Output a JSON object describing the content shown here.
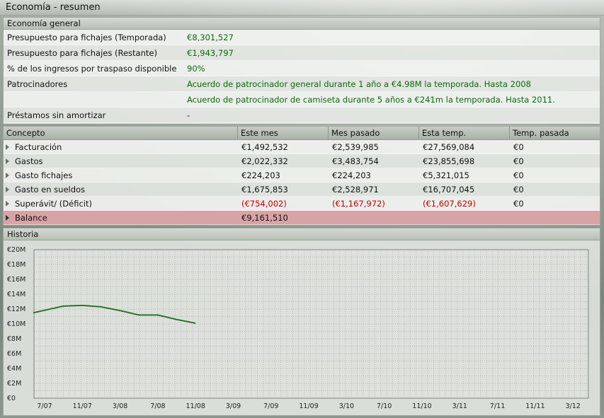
{
  "window": {
    "title": "Economía - resumen"
  },
  "general": {
    "header": "Economía general",
    "rows": [
      {
        "label": "Presupuesto para fichajes (Temporada)",
        "value": "€8,301,527"
      },
      {
        "label": "Presupuesto para fichajes (Restante)",
        "value": "€1,943,797"
      },
      {
        "label": "% de los ingresos por traspaso disponible",
        "value": "90%"
      },
      {
        "label": "Patrocinadores",
        "value": "Acuerdo de patrocinador general durante 1 año a €4.98M la temporada. Hasta 2008"
      },
      {
        "label": "",
        "value": "Acuerdo de patrocinador de camiseta durante 5 años a €241m la temporada. Hasta 2011."
      },
      {
        "label": "Préstamos sin amortizar",
        "value": "-"
      }
    ]
  },
  "table": {
    "columns": [
      "Concepto",
      "Este mes",
      "Mes pasado",
      "Esta temp.",
      "Temp. pasada"
    ],
    "rows": [
      {
        "concepto": "Facturación",
        "este_mes": "€1,492,532",
        "mes_pasado": "€2,539,985",
        "esta_temp": "€27,569,084",
        "temp_pasada": "€0"
      },
      {
        "concepto": "Gastos",
        "este_mes": "€2,022,332",
        "mes_pasado": "€3,483,754",
        "esta_temp": "€23,855,698",
        "temp_pasada": "€0"
      },
      {
        "concepto": "Gasto fichajes",
        "este_mes": "€224,203",
        "mes_pasado": "€224,203",
        "esta_temp": "€5,321,015",
        "temp_pasada": "€0"
      },
      {
        "concepto": "Gasto en sueldos",
        "este_mes": "€1,675,853",
        "mes_pasado": "€2,528,971",
        "esta_temp": "€16,707,045",
        "temp_pasada": "€0"
      },
      {
        "concepto": "Superávit/ (Déficit)",
        "este_mes": "(€754,002)",
        "mes_pasado": "(€1,167,972)",
        "esta_temp": "(€1,607,629)",
        "temp_pasada": "€0"
      },
      {
        "concepto": "Balance",
        "este_mes": "€9,161,510",
        "mes_pasado": "",
        "esta_temp": "",
        "temp_pasada": ""
      }
    ]
  },
  "history": {
    "header": "Historia"
  },
  "colors": {
    "positive": "#0a6a0a",
    "negative": "#c00000",
    "balance_row": "#d8a3a6",
    "line": "#1a6b1a"
  },
  "chart_data": {
    "type": "line",
    "ylim": [
      0,
      20
    ],
    "yticks": [
      "€0",
      "€2M",
      "€4M",
      "€6M",
      "€8M",
      "€10M",
      "€12M",
      "€14M",
      "€16M",
      "€18M",
      "€20M"
    ],
    "xticks": [
      "7/07",
      "11/07",
      "3/08",
      "7/08",
      "11/08",
      "3/09",
      "7/09",
      "11/09",
      "3/10",
      "7/10",
      "11/10",
      "3/11",
      "7/11",
      "11/11",
      "3/12"
    ],
    "grid": true,
    "series": [
      {
        "x": [
          -0.3,
          0.5,
          1,
          1.5,
          2,
          2.5,
          3,
          3.5,
          4
        ],
        "y": [
          11.5,
          12.4,
          12.5,
          12.3,
          11.8,
          11.2,
          11.2,
          10.6,
          10.1
        ]
      }
    ]
  }
}
